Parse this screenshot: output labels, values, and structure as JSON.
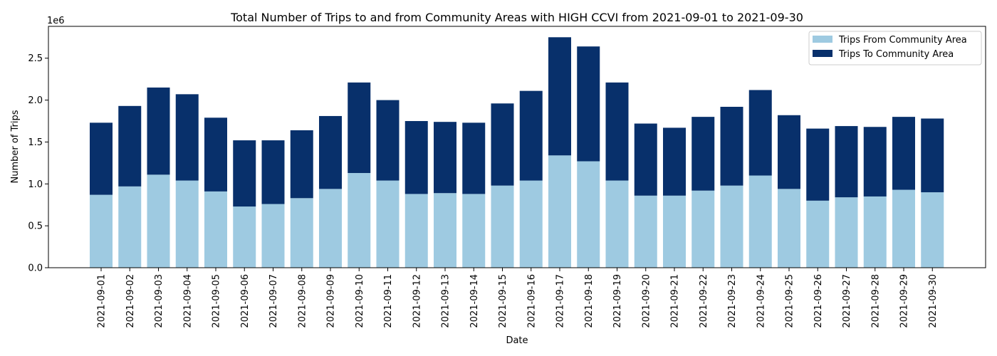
{
  "chart_data": {
    "type": "bar",
    "stacked": true,
    "title": "Total Number of Trips to and from Community Areas with HIGH CCVI from 2021-09-01 to 2021-09-30",
    "xlabel": "Date",
    "ylabel": "Number of Trips",
    "y_offset_label": "1e6",
    "ylim": [
      0,
      2.88
    ],
    "y_ticks": [
      "0.0",
      "0.5",
      "1.0",
      "1.5",
      "2.0",
      "2.5"
    ],
    "grid": false,
    "legend_position": "top-right",
    "categories": [
      "2021-09-01",
      "2021-09-02",
      "2021-09-03",
      "2021-09-04",
      "2021-09-05",
      "2021-09-06",
      "2021-09-07",
      "2021-09-08",
      "2021-09-09",
      "2021-09-10",
      "2021-09-11",
      "2021-09-12",
      "2021-09-13",
      "2021-09-14",
      "2021-09-15",
      "2021-09-16",
      "2021-09-17",
      "2021-09-18",
      "2021-09-19",
      "2021-09-20",
      "2021-09-21",
      "2021-09-22",
      "2021-09-23",
      "2021-09-24",
      "2021-09-25",
      "2021-09-26",
      "2021-09-27",
      "2021-09-28",
      "2021-09-29",
      "2021-09-30"
    ],
    "series": [
      {
        "name": "Trips From Community Area",
        "color": "#9ecae1",
        "values": [
          0.87,
          0.97,
          1.11,
          1.04,
          0.91,
          0.73,
          0.76,
          0.83,
          0.94,
          1.13,
          1.04,
          0.88,
          0.89,
          0.88,
          0.98,
          1.04,
          1.34,
          1.27,
          1.04,
          0.86,
          0.86,
          0.92,
          0.98,
          1.1,
          0.94,
          0.8,
          0.84,
          0.85,
          0.93,
          0.9
        ]
      },
      {
        "name": "Trips To Community Area",
        "color": "#08306b",
        "values": [
          0.86,
          0.96,
          1.04,
          1.03,
          0.88,
          0.79,
          0.76,
          0.81,
          0.87,
          1.08,
          0.96,
          0.87,
          0.85,
          0.85,
          0.98,
          1.07,
          1.41,
          1.37,
          1.17,
          0.86,
          0.81,
          0.88,
          0.94,
          1.02,
          0.88,
          0.86,
          0.85,
          0.83,
          0.87,
          0.88
        ]
      }
    ]
  }
}
